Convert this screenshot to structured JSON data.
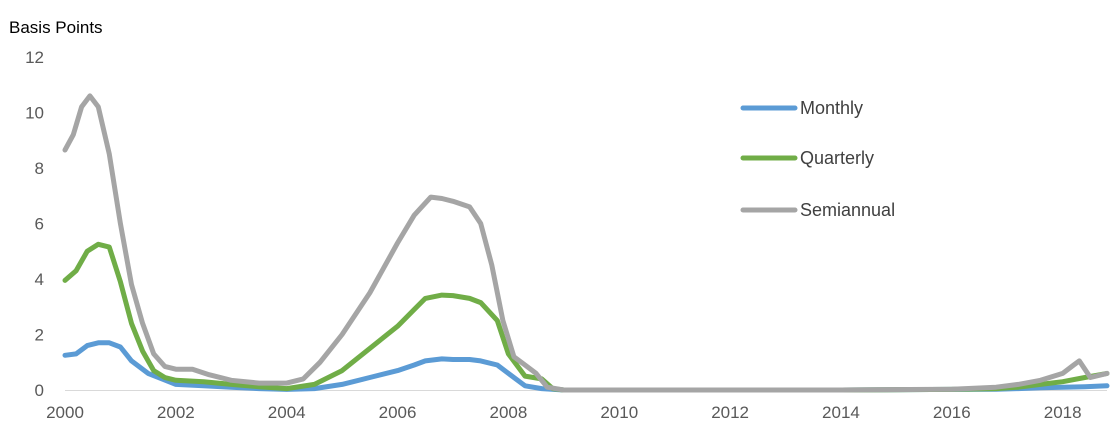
{
  "chart_data": {
    "type": "line",
    "title": "",
    "ylabel": "Basis Points",
    "xlabel": "",
    "xlim": [
      2000,
      2018.8
    ],
    "ylim": [
      0,
      12
    ],
    "x_ticks": [
      2000,
      2002,
      2004,
      2006,
      2008,
      2010,
      2012,
      2014,
      2016,
      2018
    ],
    "y_ticks": [
      0,
      2,
      4,
      6,
      8,
      10,
      12
    ],
    "grid": false,
    "legend_position": "top-right",
    "series": [
      {
        "name": "Monthly",
        "color": "#5B9BD5",
        "x": [
          2000.0,
          2000.2,
          2000.4,
          2000.6,
          2000.8,
          2001.0,
          2001.2,
          2001.5,
          2002.0,
          2002.5,
          2003.0,
          2003.5,
          2004.0,
          2004.5,
          2005.0,
          2005.5,
          2006.0,
          2006.3,
          2006.5,
          2006.8,
          2007.0,
          2007.3,
          2007.5,
          2007.8,
          2008.0,
          2008.3,
          2008.6,
          2009.0,
          2010.0,
          2012.0,
          2014.0,
          2016.0,
          2016.8,
          2017.2,
          2017.6,
          2018.0,
          2018.4,
          2018.8
        ],
        "y": [
          1.25,
          1.3,
          1.6,
          1.7,
          1.7,
          1.55,
          1.05,
          0.6,
          0.2,
          0.15,
          0.1,
          0.05,
          0.02,
          0.05,
          0.2,
          0.45,
          0.7,
          0.9,
          1.05,
          1.12,
          1.1,
          1.1,
          1.05,
          0.9,
          0.6,
          0.15,
          0.05,
          0.0,
          0.0,
          0.0,
          0.0,
          0.02,
          0.03,
          0.05,
          0.08,
          0.1,
          0.12,
          0.15
        ]
      },
      {
        "name": "Quarterly",
        "color": "#70AD47",
        "x": [
          2000.0,
          2000.2,
          2000.4,
          2000.6,
          2000.8,
          2001.0,
          2001.2,
          2001.4,
          2001.6,
          2001.8,
          2002.0,
          2002.5,
          2003.0,
          2003.5,
          2004.0,
          2004.5,
          2005.0,
          2005.5,
          2006.0,
          2006.3,
          2006.5,
          2006.8,
          2007.0,
          2007.3,
          2007.5,
          2007.8,
          2008.0,
          2008.3,
          2008.6,
          2008.8,
          2009.0,
          2010.0,
          2012.0,
          2014.0,
          2016.0,
          2016.8,
          2017.2,
          2017.6,
          2018.0,
          2018.4,
          2018.8
        ],
        "y": [
          3.95,
          4.3,
          5.0,
          5.25,
          5.15,
          3.9,
          2.4,
          1.4,
          0.7,
          0.45,
          0.35,
          0.3,
          0.2,
          0.12,
          0.05,
          0.2,
          0.7,
          1.5,
          2.3,
          2.9,
          3.3,
          3.42,
          3.4,
          3.3,
          3.15,
          2.5,
          1.3,
          0.5,
          0.4,
          0.05,
          0.0,
          0.0,
          0.0,
          0.0,
          0.02,
          0.05,
          0.1,
          0.2,
          0.3,
          0.45,
          0.6
        ]
      },
      {
        "name": "Semiannual",
        "color": "#A5A5A5",
        "x": [
          2000.0,
          2000.15,
          2000.3,
          2000.45,
          2000.6,
          2000.8,
          2001.0,
          2001.2,
          2001.4,
          2001.6,
          2001.8,
          2002.0,
          2002.3,
          2002.6,
          2003.0,
          2003.5,
          2004.0,
          2004.3,
          2004.6,
          2005.0,
          2005.5,
          2006.0,
          2006.3,
          2006.6,
          2006.8,
          2007.0,
          2007.3,
          2007.5,
          2007.7,
          2007.9,
          2008.1,
          2008.3,
          2008.5,
          2008.7,
          2009.0,
          2010.0,
          2012.0,
          2014.0,
          2016.0,
          2016.8,
          2017.2,
          2017.6,
          2018.0,
          2018.2,
          2018.3,
          2018.5,
          2018.8
        ],
        "y": [
          8.65,
          9.2,
          10.2,
          10.6,
          10.2,
          8.5,
          6.0,
          3.8,
          2.4,
          1.3,
          0.85,
          0.75,
          0.75,
          0.55,
          0.35,
          0.25,
          0.25,
          0.4,
          1.0,
          2.0,
          3.5,
          5.3,
          6.3,
          6.95,
          6.9,
          6.8,
          6.6,
          6.0,
          4.5,
          2.5,
          1.2,
          0.9,
          0.6,
          0.1,
          0.0,
          0.0,
          0.0,
          0.0,
          0.03,
          0.1,
          0.2,
          0.35,
          0.6,
          0.9,
          1.05,
          0.45,
          0.6
        ]
      }
    ]
  }
}
